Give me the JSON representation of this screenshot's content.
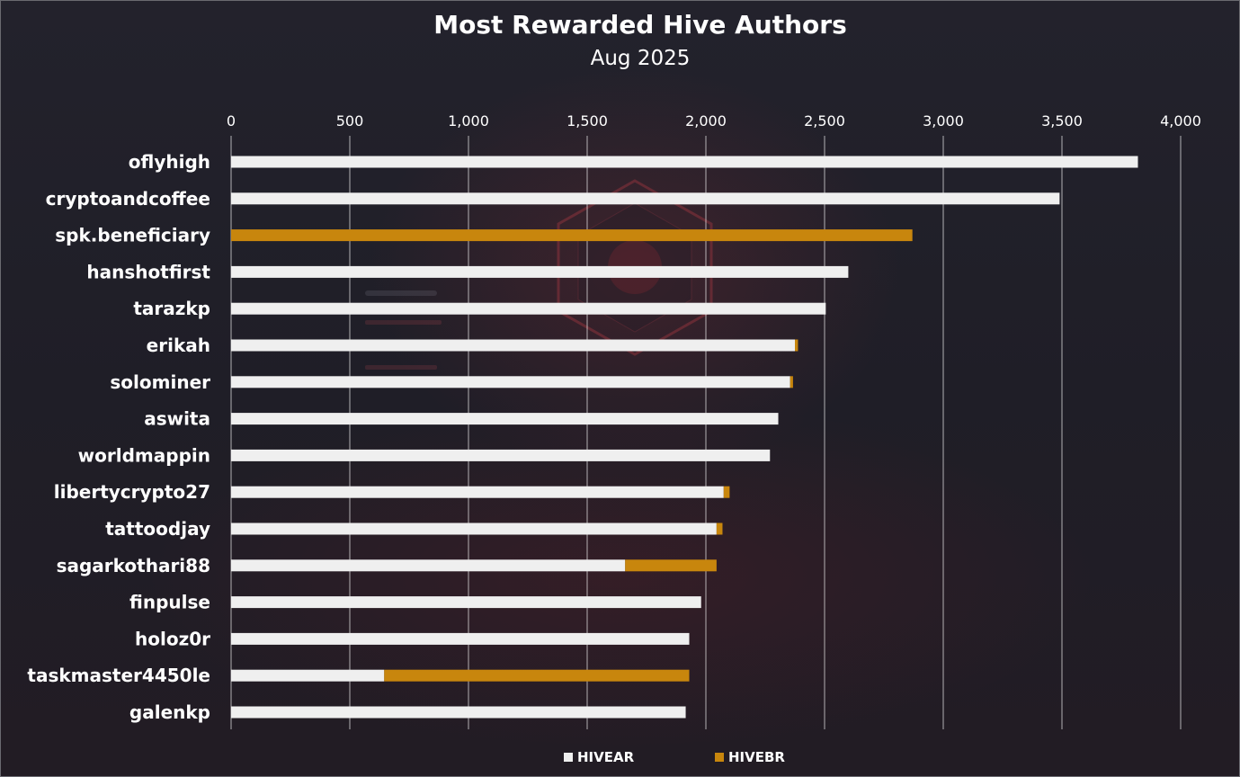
{
  "chart_data": {
    "type": "bar",
    "orientation": "horizontal",
    "stacked": true,
    "title": "Most Rewarded Hive Authors",
    "subtitle": "Aug 2025",
    "xlabel": "",
    "ylabel": "",
    "xlim": [
      0,
      4000
    ],
    "xticks": [
      0,
      500,
      1000,
      1500,
      2000,
      2500,
      3000,
      3500,
      4000
    ],
    "xtick_labels": [
      "0",
      "500",
      "1,000",
      "1,500",
      "2,000",
      "2,500",
      "3,000",
      "3,500",
      "4,000"
    ],
    "x_axis_position": "top",
    "grid": true,
    "legend_position": "bottom-center",
    "categories": [
      "oflyhigh",
      "cryptoandcoffee",
      "spk.beneficiary",
      "hanshotfirst",
      "tarazkp",
      "erikah",
      "solominer",
      "aswita",
      "worldmappin",
      "libertycrypto27",
      "tattoodjay",
      "sagarkothari88",
      "finpulse",
      "holoz0r",
      "taskmaster4450le",
      "galenkp"
    ],
    "series": [
      {
        "name": "HIVEAR",
        "color": "#efefef",
        "values": [
          3820,
          3490,
          0,
          2600,
          2505,
          2375,
          2355,
          2305,
          2270,
          2075,
          2045,
          1660,
          1980,
          1930,
          645,
          1915
        ]
      },
      {
        "name": "HIVEBR",
        "color": "#c8860d",
        "values": [
          0,
          0,
          2870,
          0,
          0,
          13,
          12,
          0,
          0,
          25,
          25,
          385,
          0,
          0,
          1285,
          0
        ]
      }
    ]
  }
}
